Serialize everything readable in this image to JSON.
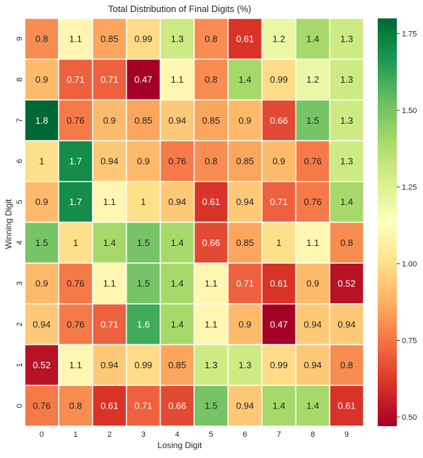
{
  "chart_data": {
    "type": "heatmap",
    "title": "Total Distribution of Final Digits (%)",
    "xlabel": "Losing Digit",
    "ylabel": "Winning Digit",
    "x_categories": [
      "0",
      "1",
      "2",
      "3",
      "4",
      "5",
      "6",
      "7",
      "8",
      "9"
    ],
    "y_categories_top_to_bottom": [
      "9",
      "8",
      "7",
      "6",
      "5",
      "4",
      "3",
      "2",
      "1",
      "0"
    ],
    "values_top_to_bottom": [
      [
        0.8,
        1.1,
        0.85,
        0.99,
        1.3,
        0.8,
        0.61,
        1.2,
        1.4,
        1.3
      ],
      [
        0.9,
        0.71,
        0.71,
        0.47,
        1.1,
        0.8,
        1.4,
        0.99,
        1.2,
        1.3
      ],
      [
        1.8,
        0.76,
        0.9,
        0.85,
        0.94,
        0.85,
        0.9,
        0.66,
        1.5,
        1.3
      ],
      [
        1,
        1.7,
        0.94,
        0.9,
        0.76,
        0.8,
        0.85,
        0.9,
        0.76,
        1.3
      ],
      [
        0.9,
        1.7,
        1.1,
        1,
        0.94,
        0.61,
        0.94,
        0.71,
        0.76,
        1.4
      ],
      [
        1.5,
        1,
        1.4,
        1.5,
        1.4,
        0.66,
        0.85,
        1,
        1.1,
        0.8
      ],
      [
        0.9,
        0.76,
        1.1,
        1.5,
        1.4,
        1.1,
        0.71,
        0.61,
        0.9,
        0.52
      ],
      [
        0.94,
        0.76,
        0.71,
        1.6,
        1.4,
        1.1,
        0.9,
        0.47,
        0.94,
        0.94
      ],
      [
        0.52,
        1.1,
        0.94,
        0.99,
        0.85,
        1.3,
        1.3,
        0.99,
        0.94,
        0.8
      ],
      [
        0.76,
        0.8,
        0.61,
        0.71,
        0.66,
        1.5,
        0.94,
        1.4,
        1.4,
        0.61
      ]
    ],
    "value_range": [
      0.47,
      1.8
    ],
    "colormap": "RdYlGn",
    "colorbar_ticks": [
      "0.50",
      "0.75",
      "1.00",
      "1.25",
      "1.50",
      "1.75"
    ],
    "grid": false,
    "legend": "colorbar-right"
  }
}
